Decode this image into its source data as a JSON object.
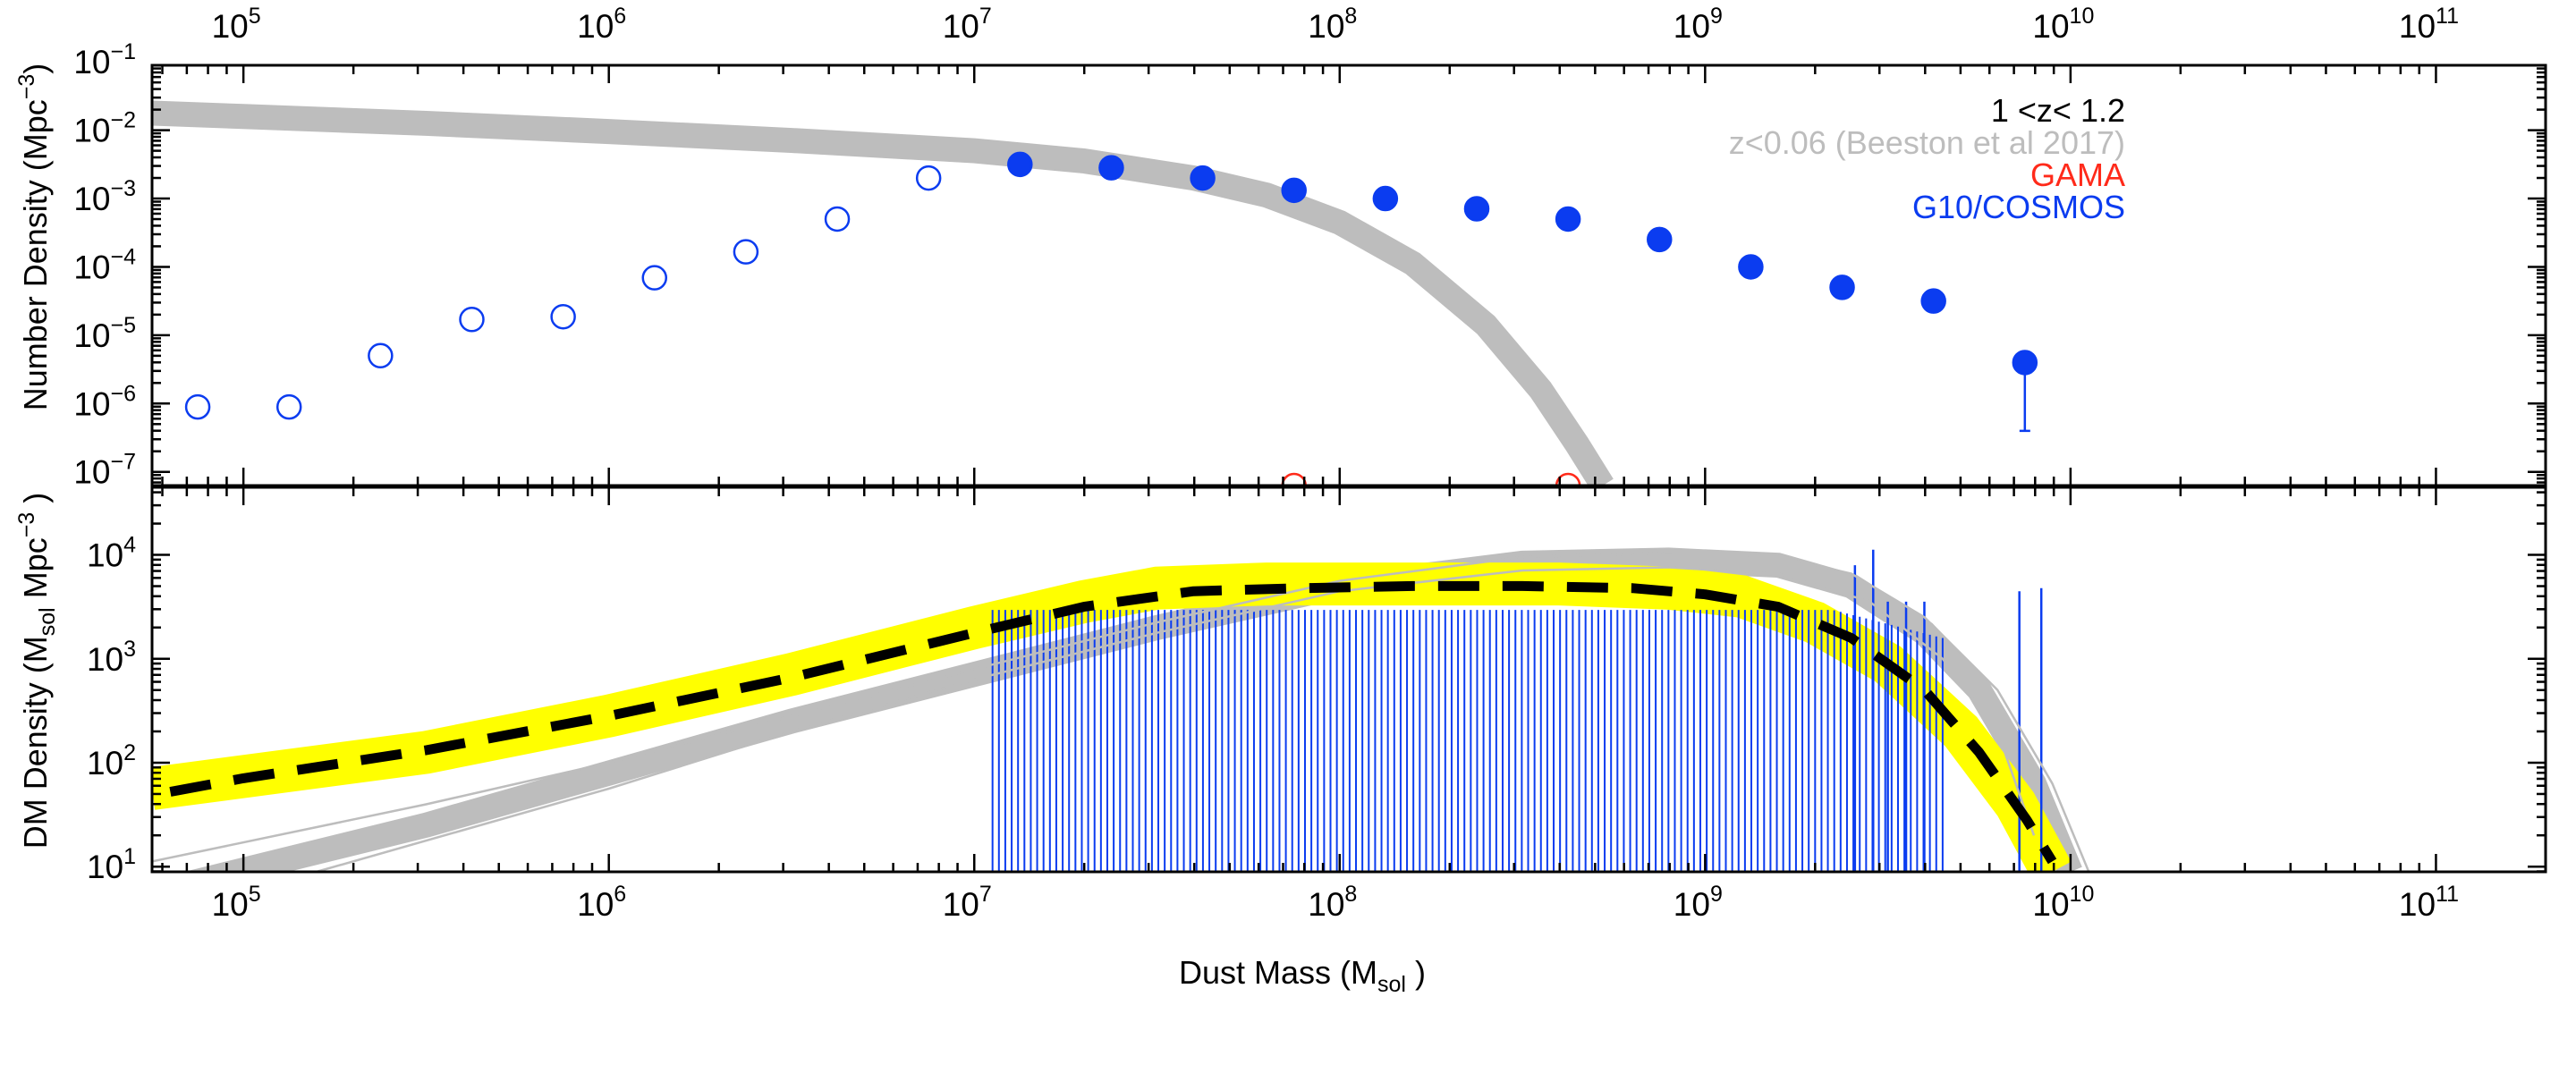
{
  "chart_data": [
    {
      "type": "scatter",
      "panel": "top",
      "title": "",
      "xlabel": "",
      "ylabel": "Number Density (Mpc^-3)",
      "ylabel_parts": {
        "main": "Number Density (Mpc",
        "sup": "−3",
        "end": ")"
      },
      "x_scale": "log",
      "y_scale": "log",
      "xlim_log10": [
        4.75,
        11.3
      ],
      "ylim_log10": [
        -7.2,
        -1.05
      ],
      "x_tick_labels": [
        {
          "base": "10",
          "exp": "5",
          "log10": 5
        },
        {
          "base": "10",
          "exp": "6",
          "log10": 6
        },
        {
          "base": "10",
          "exp": "7",
          "log10": 7
        },
        {
          "base": "10",
          "exp": "8",
          "log10": 8
        },
        {
          "base": "10",
          "exp": "9",
          "log10": 9
        },
        {
          "base": "10",
          "exp": "10",
          "log10": 10
        },
        {
          "base": "10",
          "exp": "11",
          "log10": 11
        }
      ],
      "y_tick_labels": [
        {
          "base": "10",
          "exp": "−7",
          "log10": -7
        },
        {
          "base": "10",
          "exp": "−6",
          "log10": -6
        },
        {
          "base": "10",
          "exp": "−5",
          "log10": -5
        },
        {
          "base": "10",
          "exp": "−4",
          "log10": -4
        },
        {
          "base": "10",
          "exp": "−3",
          "log10": -3
        },
        {
          "base": "10",
          "exp": "−2",
          "log10": -2
        },
        {
          "base": "10",
          "exp": "−1",
          "log10": -1
        }
      ],
      "legend": {
        "position": "top-right",
        "entries": [
          {
            "label": "1 <z< 1.2",
            "color": "#000000"
          },
          {
            "label": "z<0.06 (Beeston et al 2017)",
            "color": "#bdbdbd"
          },
          {
            "label": "GAMA",
            "color": "#ff2a1a"
          },
          {
            "label": "G10/COSMOS",
            "color": "#0b3cf0"
          }
        ]
      },
      "series": [
        {
          "name": "z<0.06 (Beeston et al 2017)",
          "kind": "band",
          "color": "#bdbdbd",
          "log10_x": [
            4.75,
            5.0,
            5.5,
            6.0,
            6.5,
            7.0,
            7.3,
            7.6,
            7.8,
            8.0,
            8.2,
            8.4,
            8.55,
            8.65,
            8.72
          ],
          "log10_y": [
            -1.75,
            -1.8,
            -1.9,
            -2.02,
            -2.15,
            -2.3,
            -2.45,
            -2.7,
            -2.95,
            -3.35,
            -3.95,
            -4.85,
            -5.8,
            -6.6,
            -7.2
          ]
        },
        {
          "name": "G10/COSMOS (filled)",
          "kind": "points",
          "filled": true,
          "color": "#0b3cf0",
          "log10_x": [
            7.125,
            7.375,
            7.625,
            7.875,
            8.125,
            8.375,
            8.625,
            8.875,
            9.125,
            9.375,
            9.625,
            9.875
          ],
          "log10_y": [
            -2.5,
            -2.55,
            -2.7,
            -2.88,
            -3.0,
            -3.15,
            -3.3,
            -3.6,
            -4.0,
            -4.3,
            -4.5,
            -5.4
          ],
          "err_lo": [
            0.03,
            0.03,
            0.03,
            0.03,
            0.03,
            0.03,
            0.03,
            0.03,
            0.05,
            0.15,
            0.15,
            1.0
          ],
          "err_hi": [
            0.03,
            0.03,
            0.03,
            0.03,
            0.03,
            0.03,
            0.03,
            0.03,
            0.05,
            0.08,
            0.08,
            0.15
          ]
        },
        {
          "name": "G10/COSMOS (open)",
          "kind": "points",
          "filled": false,
          "color": "#0b3cf0",
          "log10_x": [
            4.875,
            5.125,
            5.375,
            5.625,
            5.875,
            6.125,
            6.375,
            6.625,
            6.875
          ],
          "log10_y": [
            -6.05,
            -6.05,
            -5.3,
            -4.77,
            -4.73,
            -4.16,
            -3.78,
            -3.3,
            -2.7
          ]
        },
        {
          "name": "GAMA",
          "kind": "points",
          "filled": false,
          "color": "#ff2a1a",
          "log10_x": [
            7.875,
            8.625
          ],
          "log10_y": [
            -7.2,
            -7.2
          ]
        }
      ]
    },
    {
      "type": "line",
      "panel": "bottom",
      "title": "",
      "xlabel": "Dust Mass (M_sol)",
      "xlabel_parts": {
        "main": "Dust Mass (M",
        "sub": "sol",
        "end": " )"
      },
      "ylabel": "DM Density (M_sol Mpc^-3)",
      "ylabel_parts": {
        "main": "DM Density (M",
        "sub": "sol",
        "mid": " Mpc",
        "sup": "−3",
        "end": " )"
      },
      "x_scale": "log",
      "y_scale": "log",
      "xlim_log10": [
        4.75,
        11.3
      ],
      "ylim_log10": [
        0.95,
        4.65
      ],
      "x_tick_labels": [
        {
          "base": "10",
          "exp": "5",
          "log10": 5
        },
        {
          "base": "10",
          "exp": "6",
          "log10": 6
        },
        {
          "base": "10",
          "exp": "7",
          "log10": 7
        },
        {
          "base": "10",
          "exp": "8",
          "log10": 8
        },
        {
          "base": "10",
          "exp": "9",
          "log10": 9
        },
        {
          "base": "10",
          "exp": "10",
          "log10": 10
        },
        {
          "base": "10",
          "exp": "11",
          "log10": 11
        }
      ],
      "y_tick_labels": [
        {
          "base": "10",
          "exp": "1",
          "log10": 1
        },
        {
          "base": "10",
          "exp": "2",
          "log10": 2
        },
        {
          "base": "10",
          "exp": "3",
          "log10": 3
        },
        {
          "base": "10",
          "exp": "4",
          "log10": 4
        }
      ],
      "series": [
        {
          "name": "1<z<1.2 uncertainty band",
          "kind": "band",
          "color": "#ffff00",
          "log10_x": [
            4.75,
            5.5,
            6.0,
            6.5,
            7.0,
            7.3,
            7.5,
            7.8,
            8.2,
            8.6,
            8.9,
            9.1,
            9.3,
            9.5,
            9.7,
            9.85,
            9.95
          ],
          "log10_y": [
            1.75,
            2.1,
            2.45,
            2.85,
            3.3,
            3.55,
            3.68,
            3.72,
            3.72,
            3.72,
            3.68,
            3.6,
            3.35,
            2.95,
            2.3,
            1.6,
            0.95
          ]
        },
        {
          "name": "Beeston 2017 grey band",
          "kind": "band",
          "color": "#bdbdbd",
          "log10_x": [
            4.75,
            5.5,
            6.0,
            6.5,
            7.0,
            7.5,
            8.0,
            8.5,
            8.9,
            9.2,
            9.4,
            9.6,
            9.75,
            9.9,
            10.0
          ],
          "log10_y": [
            0.75,
            1.4,
            1.9,
            2.4,
            2.85,
            3.3,
            3.7,
            3.92,
            3.95,
            3.9,
            3.7,
            3.25,
            2.7,
            1.8,
            0.95
          ]
        },
        {
          "name": "Beeston 2017 thin upper",
          "kind": "line",
          "color": "#bdbdbd",
          "log10_x": [
            4.75,
            5.5,
            6.0,
            6.5,
            7.0,
            7.5,
            8.0,
            8.5,
            8.9,
            9.2,
            9.4,
            9.6,
            9.8,
            9.95,
            10.05
          ],
          "log10_y": [
            1.05,
            1.6,
            2.0,
            2.45,
            2.9,
            3.35,
            3.75,
            3.98,
            4.02,
            3.98,
            3.82,
            3.4,
            2.7,
            1.8,
            0.95
          ]
        },
        {
          "name": "Beeston 2017 thin lower",
          "kind": "line",
          "color": "#bdbdbd",
          "log10_x": [
            5.2,
            5.6,
            6.0,
            6.5,
            7.0,
            7.5,
            8.0,
            8.5,
            8.9,
            9.2,
            9.45,
            9.65,
            9.8,
            9.9
          ],
          "log10_y": [
            0.95,
            1.35,
            1.75,
            2.3,
            2.8,
            3.25,
            3.65,
            3.85,
            3.88,
            3.82,
            3.55,
            3.0,
            2.3,
            1.3
          ]
        },
        {
          "name": "1<z<1.2 best fit",
          "kind": "dashed",
          "color": "#000000",
          "log10_x": [
            4.8,
            5.0,
            5.5,
            6.0,
            6.5,
            7.0,
            7.3,
            7.6,
            7.9,
            8.2,
            8.5,
            8.8,
            9.0,
            9.2,
            9.4,
            9.6,
            9.75,
            9.88,
            9.95
          ],
          "log10_y": [
            1.72,
            1.85,
            2.12,
            2.45,
            2.82,
            3.25,
            3.5,
            3.65,
            3.68,
            3.7,
            3.7,
            3.68,
            3.62,
            3.5,
            3.2,
            2.7,
            2.1,
            1.45,
            1.05
          ]
        }
      ],
      "error_bars": {
        "name": "G10/COSMOS density error bars",
        "color": "#0b3cf0",
        "x_range_log10": [
          7.05,
          9.65
        ],
        "count": 150,
        "base_log10": 0.95,
        "plateau_log10": 3.47,
        "extra_spikes": [
          {
            "log10_x": 9.41,
            "log10_top": 3.9
          },
          {
            "log10_x": 9.46,
            "log10_top": 4.05
          },
          {
            "log10_x": 9.5,
            "log10_top": 3.55
          },
          {
            "log10_x": 9.55,
            "log10_top": 3.55
          },
          {
            "log10_x": 9.6,
            "log10_top": 3.55
          },
          {
            "log10_x": 9.86,
            "log10_top": 3.65
          },
          {
            "log10_x": 9.92,
            "log10_top": 3.68
          }
        ]
      }
    }
  ]
}
